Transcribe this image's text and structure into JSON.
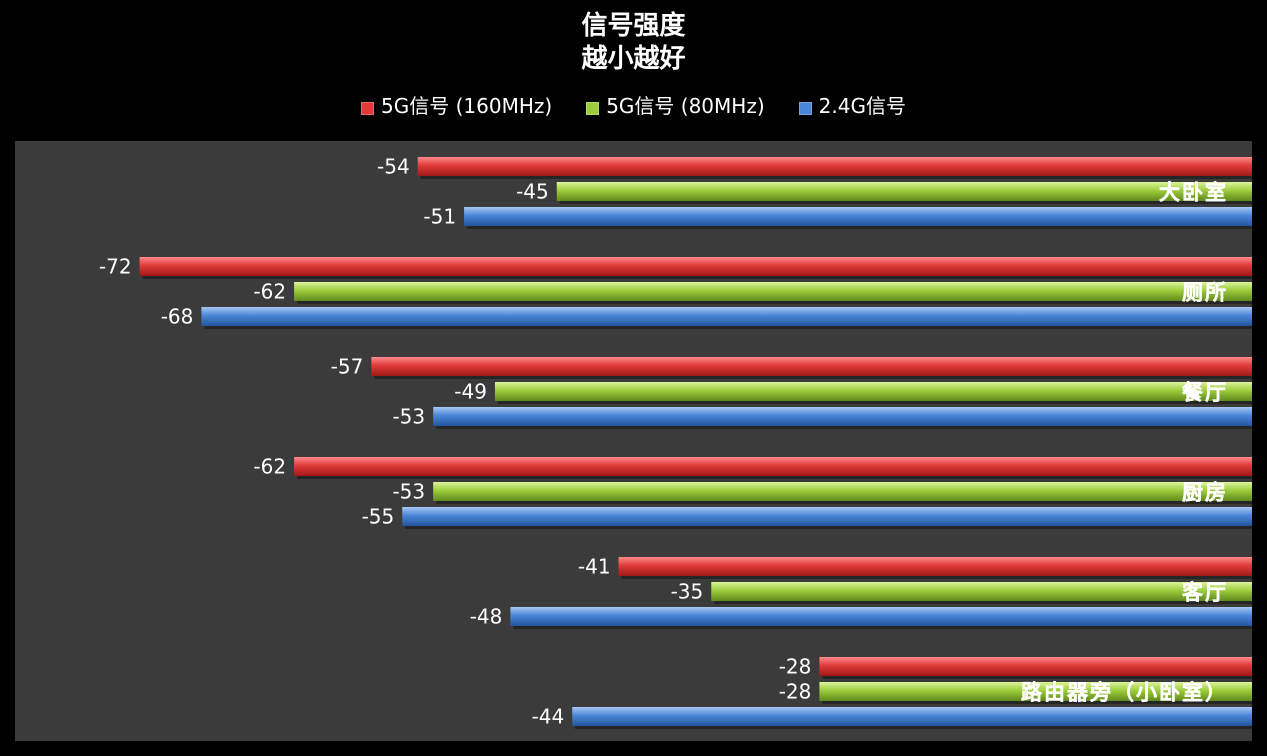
{
  "chart_data": {
    "type": "bar",
    "orientation": "horizontal",
    "title_lines": [
      "信号强度",
      "越小越好"
    ],
    "legend_position": "top",
    "categories": [
      "大卧室",
      "厕所",
      "餐厅",
      "厨房",
      "客厅",
      "路由器旁（小卧室）"
    ],
    "series": [
      {
        "name": "5G信号 (160MHz)",
        "color": "#e03a3a",
        "values": [
          -54,
          -72,
          -57,
          -62,
          -41,
          -28
        ]
      },
      {
        "name": "5G信号 (80MHz)",
        "color": "#9ccc3c",
        "values": [
          -45,
          -62,
          -49,
          -53,
          -35,
          -28
        ]
      },
      {
        "name": "2.4G信号",
        "color": "#4a86d6",
        "values": [
          -51,
          -68,
          -53,
          -55,
          -48,
          -44
        ]
      }
    ],
    "data_labels": true,
    "grid": false,
    "plot_background": "#3b3b3b",
    "background": "#000000"
  }
}
